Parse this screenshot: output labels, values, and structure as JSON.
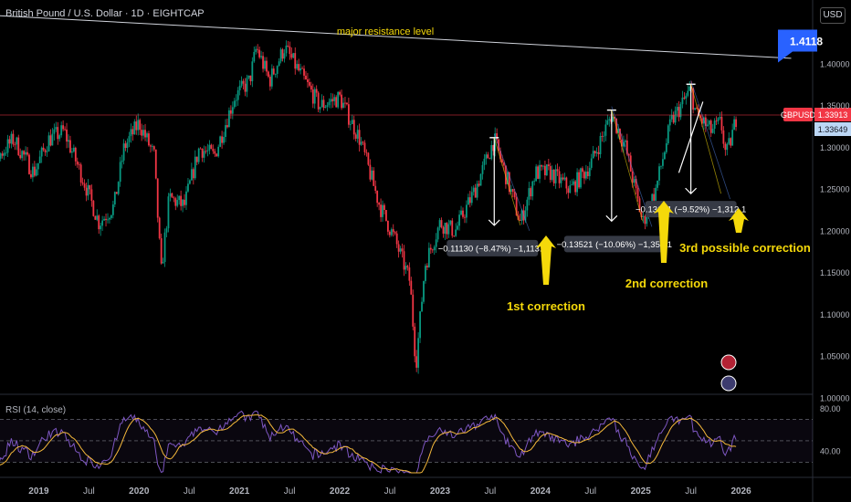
{
  "header": {
    "title": "British Pound / U.S. Dollar · 1D · EIGHTCAP",
    "currency": "USD"
  },
  "colors": {
    "up": "#089981",
    "down": "#f23645",
    "price_line": "#f23645",
    "annotation": "#f5d90a",
    "rsi": "#7e57c2",
    "rsi_ma": "#f5b93b",
    "flag": "#2962ff"
  },
  "chart_data": {
    "type": "candlestick",
    "symbol": "GBPUSD",
    "x_ticks": [
      "Jul",
      "2019",
      "Jul",
      "2020",
      "Jul",
      "2021",
      "Jul",
      "2022",
      "Jul",
      "2023",
      "Jul",
      "2024",
      "Jul",
      "2025",
      "Jul",
      "2026"
    ],
    "y_ticks": [
      "1.40000",
      "1.35000",
      "1.30000",
      "1.25000",
      "1.20000",
      "1.15000",
      "1.10000",
      "1.05000",
      "1.00000"
    ],
    "ylim": [
      0.985,
      1.455
    ],
    "price_path": [
      [
        2018.3,
        1.36
      ],
      [
        2018.45,
        1.31
      ],
      [
        2018.6,
        1.29
      ],
      [
        2018.75,
        1.31
      ],
      [
        2018.95,
        1.27
      ],
      [
        2019.1,
        1.31
      ],
      [
        2019.25,
        1.32
      ],
      [
        2019.45,
        1.26
      ],
      [
        2019.6,
        1.21
      ],
      [
        2019.75,
        1.23
      ],
      [
        2019.85,
        1.3
      ],
      [
        2020.0,
        1.33
      ],
      [
        2020.15,
        1.29
      ],
      [
        2020.22,
        1.15
      ],
      [
        2020.3,
        1.24
      ],
      [
        2020.45,
        1.23
      ],
      [
        2020.6,
        1.3
      ],
      [
        2020.75,
        1.29
      ],
      [
        2020.95,
        1.36
      ],
      [
        2021.1,
        1.38
      ],
      [
        2021.17,
        1.42
      ],
      [
        2021.3,
        1.38
      ],
      [
        2021.45,
        1.42
      ],
      [
        2021.6,
        1.39
      ],
      [
        2021.8,
        1.35
      ],
      [
        2022.0,
        1.36
      ],
      [
        2022.2,
        1.31
      ],
      [
        2022.4,
        1.23
      ],
      [
        2022.55,
        1.19
      ],
      [
        2022.7,
        1.14
      ],
      [
        2022.76,
        1.04
      ],
      [
        2022.85,
        1.16
      ],
      [
        2023.0,
        1.21
      ],
      [
        2023.15,
        1.2
      ],
      [
        2023.35,
        1.25
      ],
      [
        2023.54,
        1.31
      ],
      [
        2023.7,
        1.25
      ],
      [
        2023.8,
        1.21
      ],
      [
        2023.95,
        1.27
      ],
      [
        2024.1,
        1.27
      ],
      [
        2024.3,
        1.25
      ],
      [
        2024.5,
        1.28
      ],
      [
        2024.71,
        1.34
      ],
      [
        2024.85,
        1.3
      ],
      [
        2025.02,
        1.21
      ],
      [
        2025.15,
        1.25
      ],
      [
        2025.3,
        1.33
      ],
      [
        2025.5,
        1.37
      ],
      [
        2025.55,
        1.34
      ],
      [
        2025.7,
        1.32
      ],
      [
        2025.8,
        1.33
      ],
      [
        2025.85,
        1.29
      ],
      [
        2025.9,
        1.31
      ],
      [
        2025.95,
        1.335
      ]
    ],
    "resistance_line": {
      "x": [
        2018.0,
        2026.5
      ],
      "y": [
        1.462,
        1.407
      ],
      "label": "major resistance level"
    },
    "horizontal_line": {
      "y": 1.33913
    },
    "price_labels": [
      {
        "text": "GBPUSD",
        "y": 1.33913,
        "color": "#f23645"
      },
      {
        "text": "1.33913",
        "y": 1.33913,
        "color": "#f23645"
      },
      {
        "text": "1.33649",
        "y": 1.3265,
        "color": "#bcd7f5"
      },
      {
        "text": "1.4118",
        "y": 1.426,
        "color": "#2962ff"
      }
    ],
    "measurements": [
      {
        "text": "−0.11130 (−8.47%) −1,113.0",
        "x1": 2023.54,
        "x2": 2023.8,
        "y_top": 1.312,
        "y_bot": 1.207
      },
      {
        "text": "−0.13521 (−10.06%) −1,352.1",
        "x1": 2024.71,
        "x2": 2025.02,
        "y_top": 1.345,
        "y_bot": 1.212
      },
      {
        "text": "−0.13121 (−9.52%) −1,312.1",
        "x1": 2025.5,
        "x2": 2025.8,
        "y_top": 1.376,
        "y_bot": 1.245
      }
    ],
    "annotations": [
      "1st correction",
      "2nd correction",
      "3rd possible correction"
    ],
    "rsi": {
      "label": "RSI (14, close)",
      "ticks": [
        "80.00",
        "40.00"
      ],
      "levels": [
        70,
        50,
        30
      ]
    }
  }
}
